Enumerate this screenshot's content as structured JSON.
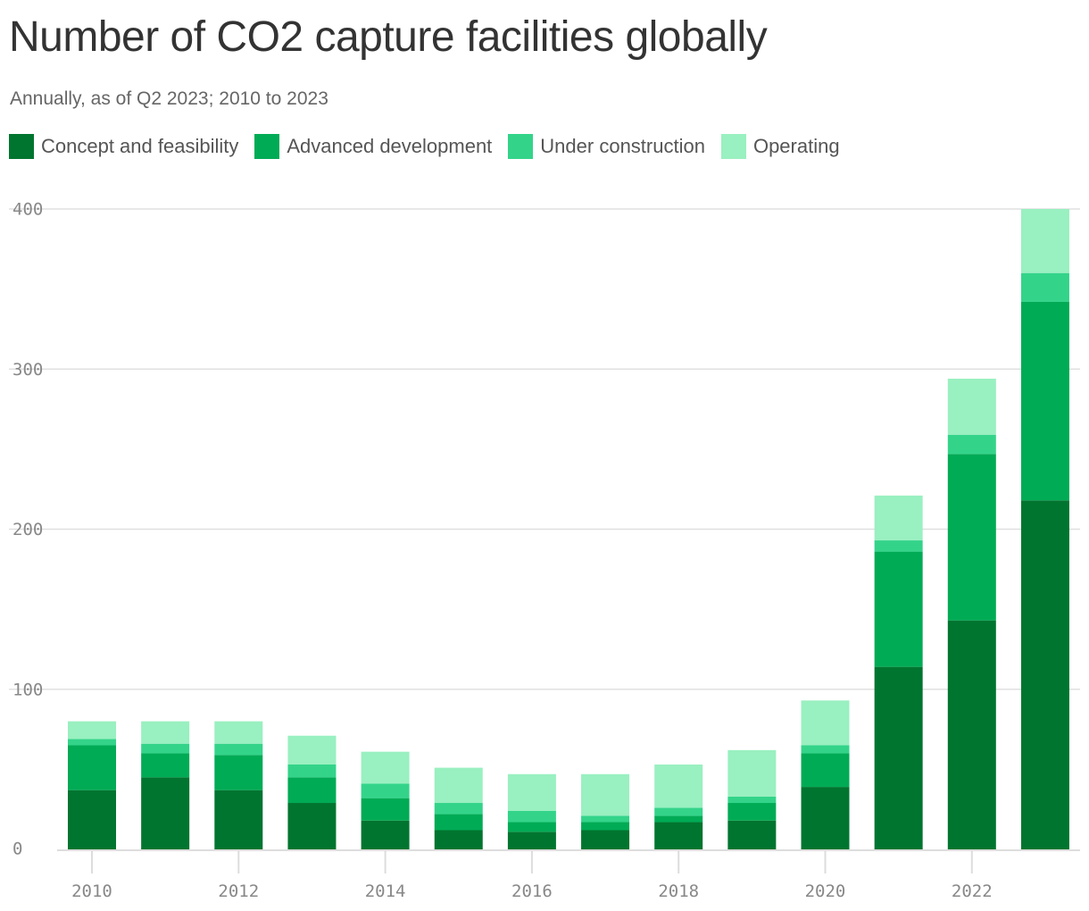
{
  "chart_data": {
    "type": "bar",
    "stacked": true,
    "title": "Number of CO2 capture facilities globally",
    "subtitle": "Annually, as of Q2 2023; 2010 to 2023",
    "categories": [
      "2010",
      "2011",
      "2012",
      "2013",
      "2014",
      "2015",
      "2016",
      "2017",
      "2018",
      "2019",
      "2020",
      "2021",
      "2022",
      "2023"
    ],
    "x_tick_labels": [
      "2010",
      "2012",
      "2014",
      "2016",
      "2018",
      "2020",
      "2022"
    ],
    "y_tick_labels": [
      "0",
      "100",
      "200",
      "300",
      "400"
    ],
    "ylim": [
      0,
      400
    ],
    "grid": true,
    "legend_position": "top-left",
    "series": [
      {
        "name": "Concept and feasibility",
        "color": "#00752f",
        "values": [
          37,
          45,
          37,
          29,
          18,
          12,
          11,
          12,
          17,
          18,
          39,
          114,
          143,
          218
        ]
      },
      {
        "name": "Advanced development",
        "color": "#00ab55",
        "values": [
          28,
          15,
          22,
          16,
          14,
          10,
          6,
          5,
          4,
          11,
          21,
          72,
          104,
          124
        ]
      },
      {
        "name": "Under construction",
        "color": "#33d48a",
        "values": [
          4,
          6,
          7,
          8,
          9,
          7,
          7,
          4,
          5,
          4,
          5,
          7,
          12,
          18
        ]
      },
      {
        "name": "Operating",
        "color": "#99f0c0",
        "values": [
          11,
          14,
          14,
          18,
          20,
          22,
          23,
          26,
          27,
          29,
          28,
          28,
          35,
          40
        ]
      }
    ]
  }
}
